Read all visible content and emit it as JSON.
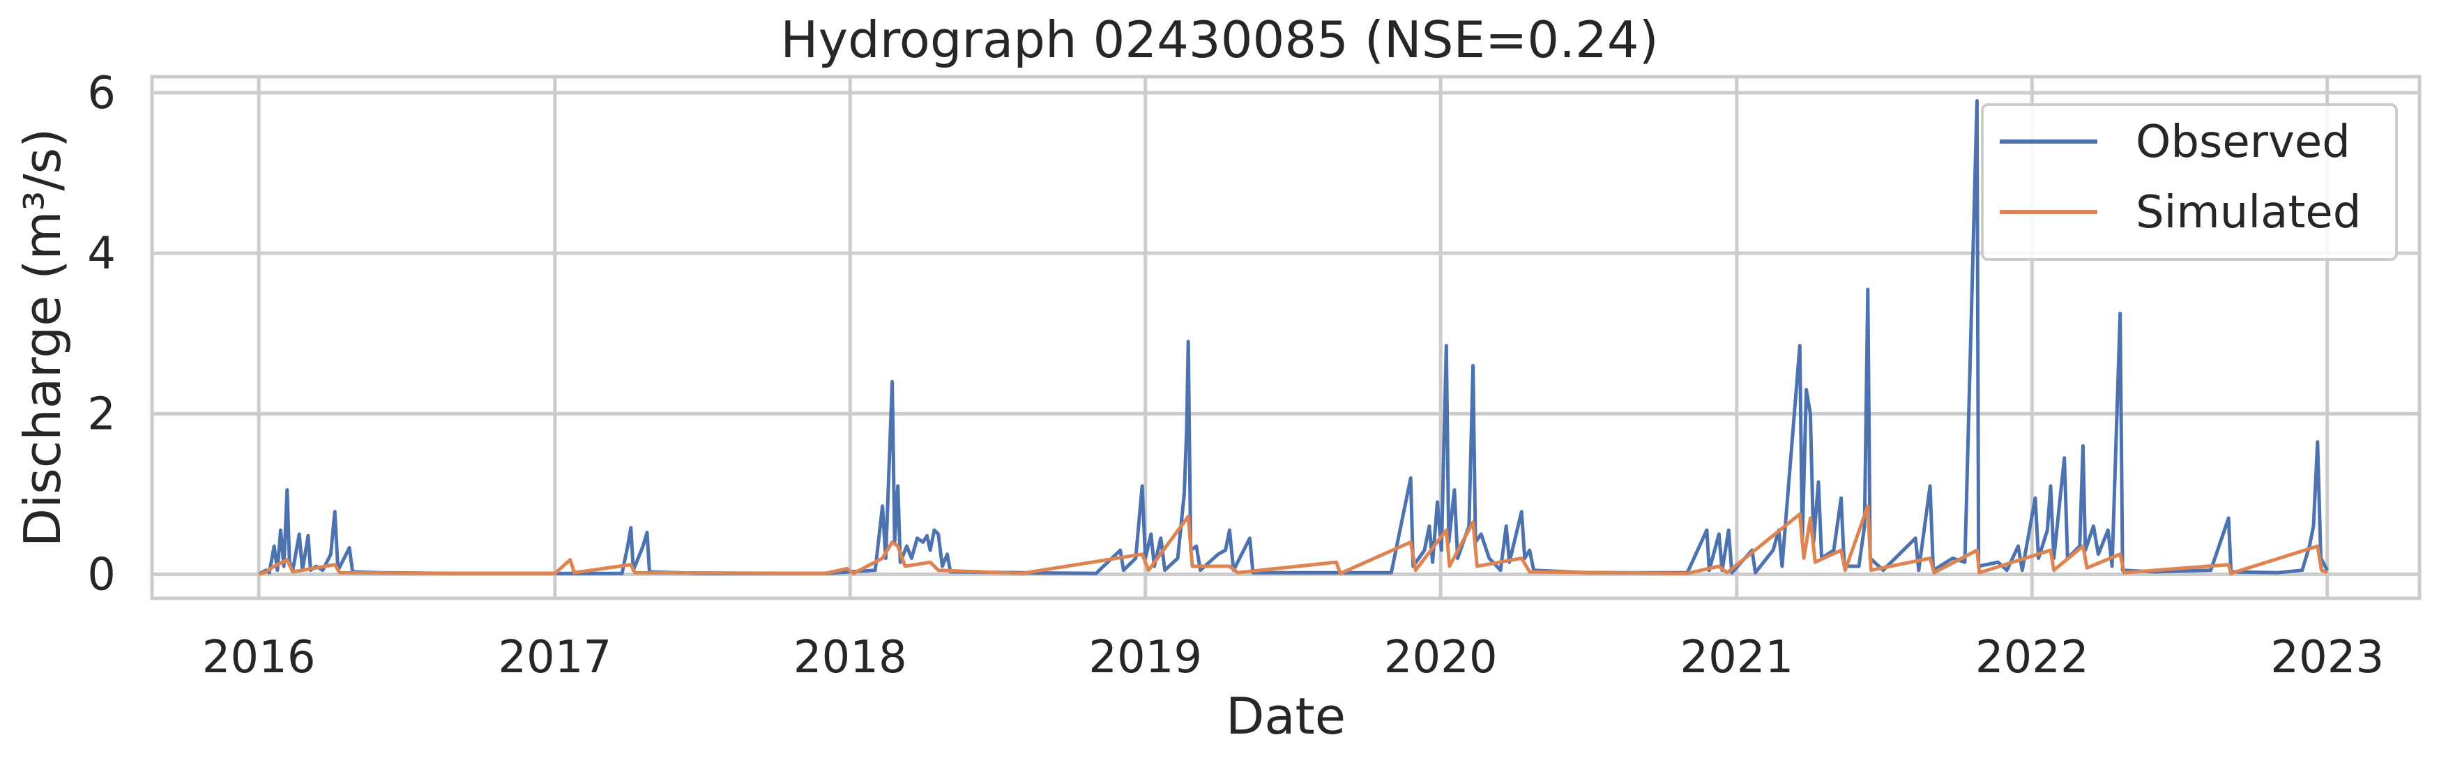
{
  "chart_data": {
    "type": "line",
    "title": "Hydrograph 02430085  (NSE=0.24)",
    "xlabel": "Date",
    "ylabel": "Discharge (m³/s)",
    "xlim": [
      "2015-08-22",
      "2023-04-25"
    ],
    "ylim": [
      -0.3,
      6.2
    ],
    "x_ticks": [
      "2016",
      "2017",
      "2018",
      "2019",
      "2020",
      "2021",
      "2022",
      "2023"
    ],
    "y_ticks": [
      0,
      2,
      4,
      6
    ],
    "grid": true,
    "legend_position": "top-right",
    "series": [
      {
        "name": "Observed",
        "color": "#4c72b0",
        "points": [
          [
            "2016-01-01",
            0.0
          ],
          [
            "2016-01-10",
            0.05
          ],
          [
            "2016-01-14",
            0.02
          ],
          [
            "2016-01-20",
            0.35
          ],
          [
            "2016-01-24",
            0.05
          ],
          [
            "2016-01-28",
            0.55
          ],
          [
            "2016-02-01",
            0.1
          ],
          [
            "2016-02-05",
            1.05
          ],
          [
            "2016-02-08",
            0.15
          ],
          [
            "2016-02-12",
            0.05
          ],
          [
            "2016-02-20",
            0.5
          ],
          [
            "2016-02-24",
            0.05
          ],
          [
            "2016-03-02",
            0.48
          ],
          [
            "2016-03-05",
            0.05
          ],
          [
            "2016-03-12",
            0.1
          ],
          [
            "2016-03-20",
            0.05
          ],
          [
            "2016-03-30",
            0.25
          ],
          [
            "2016-04-04",
            0.78
          ],
          [
            "2016-04-08",
            0.05
          ],
          [
            "2016-04-22",
            0.33
          ],
          [
            "2016-04-26",
            0.03
          ],
          [
            "2016-06-01",
            0.02
          ],
          [
            "2016-09-01",
            0.01
          ],
          [
            "2017-01-01",
            0.01
          ],
          [
            "2017-03-25",
            0.01
          ],
          [
            "2017-04-01",
            0.35
          ],
          [
            "2017-04-05",
            0.58
          ],
          [
            "2017-04-08",
            0.05
          ],
          [
            "2017-04-20",
            0.35
          ],
          [
            "2017-04-25",
            0.52
          ],
          [
            "2017-04-28",
            0.03
          ],
          [
            "2017-07-01",
            0.01
          ],
          [
            "2017-12-01",
            0.01
          ],
          [
            "2018-02-01",
            0.05
          ],
          [
            "2018-02-10",
            0.85
          ],
          [
            "2018-02-14",
            0.2
          ],
          [
            "2018-02-22",
            2.4
          ],
          [
            "2018-02-25",
            0.4
          ],
          [
            "2018-03-01",
            1.1
          ],
          [
            "2018-03-04",
            0.15
          ],
          [
            "2018-03-12",
            0.35
          ],
          [
            "2018-03-18",
            0.2
          ],
          [
            "2018-03-25",
            0.45
          ],
          [
            "2018-04-01",
            0.4
          ],
          [
            "2018-04-06",
            0.48
          ],
          [
            "2018-04-10",
            0.3
          ],
          [
            "2018-04-15",
            0.55
          ],
          [
            "2018-04-20",
            0.5
          ],
          [
            "2018-04-25",
            0.1
          ],
          [
            "2018-05-01",
            0.25
          ],
          [
            "2018-05-05",
            0.03
          ],
          [
            "2018-08-01",
            0.02
          ],
          [
            "2018-11-01",
            0.01
          ],
          [
            "2018-12-01",
            0.3
          ],
          [
            "2018-12-05",
            0.05
          ],
          [
            "2018-12-20",
            0.2
          ],
          [
            "2018-12-28",
            1.1
          ],
          [
            "2019-01-01",
            0.2
          ],
          [
            "2019-01-08",
            0.5
          ],
          [
            "2019-01-12",
            0.1
          ],
          [
            "2019-01-20",
            0.45
          ],
          [
            "2019-01-25",
            0.05
          ],
          [
            "2019-02-10",
            0.2
          ],
          [
            "2019-02-18",
            1.0
          ],
          [
            "2019-02-21",
            1.8
          ],
          [
            "2019-02-23",
            2.9
          ],
          [
            "2019-02-26",
            0.3
          ],
          [
            "2019-03-05",
            0.35
          ],
          [
            "2019-03-10",
            0.05
          ],
          [
            "2019-04-01",
            0.25
          ],
          [
            "2019-04-10",
            0.3
          ],
          [
            "2019-04-15",
            0.55
          ],
          [
            "2019-04-20",
            0.05
          ],
          [
            "2019-05-10",
            0.45
          ],
          [
            "2019-05-14",
            0.02
          ],
          [
            "2019-08-01",
            0.02
          ],
          [
            "2019-11-01",
            0.02
          ],
          [
            "2019-11-25",
            1.2
          ],
          [
            "2019-11-28",
            0.1
          ],
          [
            "2019-12-12",
            0.3
          ],
          [
            "2019-12-18",
            0.6
          ],
          [
            "2019-12-22",
            0.15
          ],
          [
            "2019-12-28",
            0.9
          ],
          [
            "2020-01-02",
            0.3
          ],
          [
            "2020-01-08",
            2.85
          ],
          [
            "2020-01-11",
            0.4
          ],
          [
            "2020-01-18",
            1.05
          ],
          [
            "2020-01-22",
            0.2
          ],
          [
            "2020-02-05",
            0.6
          ],
          [
            "2020-02-10",
            2.6
          ],
          [
            "2020-02-13",
            0.4
          ],
          [
            "2020-02-20",
            0.5
          ],
          [
            "2020-03-01",
            0.2
          ],
          [
            "2020-03-15",
            0.05
          ],
          [
            "2020-03-22",
            0.6
          ],
          [
            "2020-03-26",
            0.15
          ],
          [
            "2020-04-10",
            0.78
          ],
          [
            "2020-04-14",
            0.2
          ],
          [
            "2020-04-20",
            0.3
          ],
          [
            "2020-04-25",
            0.05
          ],
          [
            "2020-07-01",
            0.02
          ],
          [
            "2020-11-01",
            0.02
          ],
          [
            "2020-11-25",
            0.55
          ],
          [
            "2020-11-28",
            0.05
          ],
          [
            "2020-12-10",
            0.5
          ],
          [
            "2020-12-14",
            0.05
          ],
          [
            "2020-12-22",
            0.55
          ],
          [
            "2020-12-26",
            0.02
          ],
          [
            "2021-01-20",
            0.3
          ],
          [
            "2021-01-24",
            0.02
          ],
          [
            "2021-02-15",
            0.3
          ],
          [
            "2021-02-22",
            0.55
          ],
          [
            "2021-02-26",
            0.1
          ],
          [
            "2021-03-20",
            2.85
          ],
          [
            "2021-03-23",
            0.4
          ],
          [
            "2021-03-28",
            2.3
          ],
          [
            "2021-04-02",
            2.0
          ],
          [
            "2021-04-06",
            0.4
          ],
          [
            "2021-04-12",
            1.15
          ],
          [
            "2021-04-16",
            0.2
          ],
          [
            "2021-05-01",
            0.3
          ],
          [
            "2021-05-10",
            0.95
          ],
          [
            "2021-05-14",
            0.1
          ],
          [
            "2021-06-01",
            0.1
          ],
          [
            "2021-06-08",
            0.6
          ],
          [
            "2021-06-12",
            3.55
          ],
          [
            "2021-06-15",
            0.2
          ],
          [
            "2021-07-01",
            0.05
          ],
          [
            "2021-08-10",
            0.45
          ],
          [
            "2021-08-14",
            0.05
          ],
          [
            "2021-08-28",
            1.1
          ],
          [
            "2021-09-01",
            0.05
          ],
          [
            "2021-09-25",
            0.2
          ],
          [
            "2021-10-10",
            0.15
          ],
          [
            "2021-10-25",
            5.9
          ],
          [
            "2021-10-27",
            0.1
          ],
          [
            "2021-11-20",
            0.15
          ],
          [
            "2021-12-01",
            0.05
          ],
          [
            "2021-12-15",
            0.35
          ],
          [
            "2021-12-20",
            0.05
          ],
          [
            "2022-01-05",
            0.95
          ],
          [
            "2022-01-09",
            0.2
          ],
          [
            "2022-01-20",
            0.55
          ],
          [
            "2022-01-24",
            1.1
          ],
          [
            "2022-01-28",
            0.2
          ],
          [
            "2022-02-10",
            1.45
          ],
          [
            "2022-02-14",
            0.2
          ],
          [
            "2022-03-01",
            0.35
          ],
          [
            "2022-03-05",
            1.6
          ],
          [
            "2022-03-08",
            0.3
          ],
          [
            "2022-03-18",
            0.6
          ],
          [
            "2022-03-24",
            0.25
          ],
          [
            "2022-04-05",
            0.55
          ],
          [
            "2022-04-10",
            0.1
          ],
          [
            "2022-04-20",
            3.25
          ],
          [
            "2022-04-23",
            0.05
          ],
          [
            "2022-06-01",
            0.03
          ],
          [
            "2022-08-10",
            0.05
          ],
          [
            "2022-09-01",
            0.7
          ],
          [
            "2022-09-04",
            0.03
          ],
          [
            "2022-11-01",
            0.02
          ],
          [
            "2022-12-01",
            0.05
          ],
          [
            "2022-12-10",
            0.35
          ],
          [
            "2022-12-15",
            0.6
          ],
          [
            "2022-12-20",
            1.65
          ],
          [
            "2022-12-24",
            0.2
          ],
          [
            "2023-01-01",
            0.05
          ]
        ]
      },
      {
        "name": "Simulated",
        "color": "#dd8452",
        "points": [
          [
            "2016-01-01",
            0.0
          ],
          [
            "2016-01-10",
            0.03
          ],
          [
            "2016-01-20",
            0.1
          ],
          [
            "2016-02-05",
            0.18
          ],
          [
            "2016-02-12",
            0.03
          ],
          [
            "2016-04-04",
            0.12
          ],
          [
            "2016-04-10",
            0.02
          ],
          [
            "2016-09-01",
            0.01
          ],
          [
            "2017-01-01",
            0.01
          ],
          [
            "2017-01-20",
            0.18
          ],
          [
            "2017-01-25",
            0.02
          ],
          [
            "2017-04-05",
            0.12
          ],
          [
            "2017-04-10",
            0.02
          ],
          [
            "2017-12-01",
            0.01
          ],
          [
            "2017-12-28",
            0.07
          ],
          [
            "2018-01-05",
            0.01
          ],
          [
            "2018-02-10",
            0.2
          ],
          [
            "2018-02-22",
            0.4
          ],
          [
            "2018-03-01",
            0.35
          ],
          [
            "2018-03-10",
            0.1
          ],
          [
            "2018-04-10",
            0.15
          ],
          [
            "2018-04-20",
            0.05
          ],
          [
            "2018-08-01",
            0.01
          ],
          [
            "2018-12-28",
            0.25
          ],
          [
            "2019-01-05",
            0.05
          ],
          [
            "2019-02-23",
            0.72
          ],
          [
            "2019-02-28",
            0.1
          ],
          [
            "2019-04-15",
            0.1
          ],
          [
            "2019-04-25",
            0.02
          ],
          [
            "2019-08-25",
            0.15
          ],
          [
            "2019-08-30",
            0.01
          ],
          [
            "2019-11-25",
            0.4
          ],
          [
            "2019-12-01",
            0.05
          ],
          [
            "2020-01-08",
            0.55
          ],
          [
            "2020-01-12",
            0.1
          ],
          [
            "2020-02-10",
            0.65
          ],
          [
            "2020-02-15",
            0.1
          ],
          [
            "2020-04-10",
            0.2
          ],
          [
            "2020-04-20",
            0.03
          ],
          [
            "2020-11-01",
            0.01
          ],
          [
            "2020-12-10",
            0.1
          ],
          [
            "2020-12-20",
            0.02
          ],
          [
            "2021-03-20",
            0.75
          ],
          [
            "2021-03-25",
            0.2
          ],
          [
            "2021-04-02",
            0.7
          ],
          [
            "2021-04-08",
            0.15
          ],
          [
            "2021-05-10",
            0.3
          ],
          [
            "2021-05-15",
            0.05
          ],
          [
            "2021-06-12",
            0.85
          ],
          [
            "2021-06-16",
            0.05
          ],
          [
            "2021-08-28",
            0.2
          ],
          [
            "2021-09-02",
            0.02
          ],
          [
            "2021-10-25",
            0.3
          ],
          [
            "2021-10-28",
            0.02
          ],
          [
            "2022-01-24",
            0.3
          ],
          [
            "2022-01-28",
            0.05
          ],
          [
            "2022-03-05",
            0.35
          ],
          [
            "2022-03-10",
            0.08
          ],
          [
            "2022-04-20",
            0.25
          ],
          [
            "2022-04-25",
            0.02
          ],
          [
            "2022-09-01",
            0.12
          ],
          [
            "2022-09-04",
            0.01
          ],
          [
            "2022-12-20",
            0.35
          ],
          [
            "2022-12-25",
            0.05
          ],
          [
            "2023-01-01",
            0.02
          ]
        ]
      }
    ]
  }
}
